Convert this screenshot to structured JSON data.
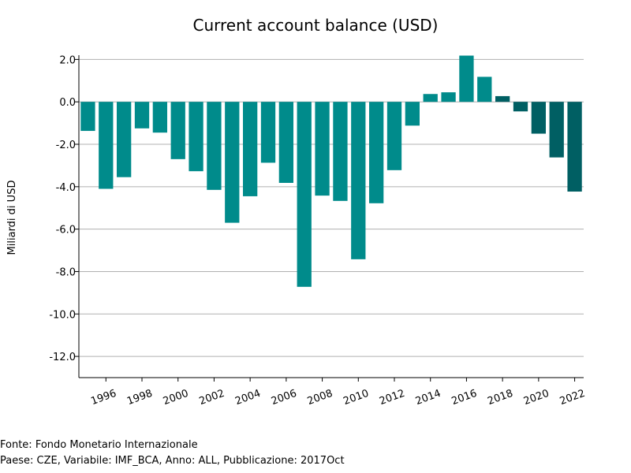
{
  "chart_data": {
    "type": "bar",
    "title": "Current account balance (USD)",
    "xlabel": "",
    "ylabel": "Miliardi di USD",
    "ylim": [
      -13.0,
      2.2
    ],
    "yticks": [
      "2.0",
      "0.0",
      "-2.0",
      "-4.0",
      "-6.0",
      "-8.0",
      "-10.0",
      "-12.0"
    ],
    "ytick_values": [
      2,
      0,
      -2,
      -4,
      -6,
      -8,
      -10,
      -12
    ],
    "xtick_labels": [
      "1996",
      "1998",
      "2000",
      "2002",
      "2004",
      "2006",
      "2008",
      "2010",
      "2012",
      "2014",
      "2016",
      "2018",
      "2020",
      "2022"
    ],
    "categories": [
      "1995",
      "1996",
      "1997",
      "1998",
      "1999",
      "2000",
      "2001",
      "2002",
      "2003",
      "2004",
      "2005",
      "2006",
      "2007",
      "2008",
      "2009",
      "2010",
      "2011",
      "2012",
      "2013",
      "2014",
      "2015",
      "2016",
      "2017",
      "2018",
      "2019",
      "2020",
      "2021",
      "2022"
    ],
    "values": [
      -1.37,
      -4.1,
      -3.55,
      -1.25,
      -1.45,
      -2.7,
      -3.27,
      -4.15,
      -5.7,
      -4.45,
      -2.87,
      -3.82,
      -8.72,
      -4.42,
      -4.67,
      -7.42,
      -4.78,
      -3.22,
      -1.12,
      0.37,
      0.45,
      2.18,
      1.18,
      0.27,
      -0.45,
      -1.5,
      -2.62,
      -4.23
    ],
    "grid": true,
    "colors": {
      "actual": "#008b8b",
      "projection": "#005f63",
      "grid": "#b0b0b0",
      "axis": "#000000"
    },
    "projection_from": "2018"
  },
  "footer": {
    "source": "Fonte: Fondo Monetario Internazionale",
    "details": "Paese: CZE, Variabile: IMF_BCA, Anno: ALL, Pubblicazione: 2017Oct"
  }
}
